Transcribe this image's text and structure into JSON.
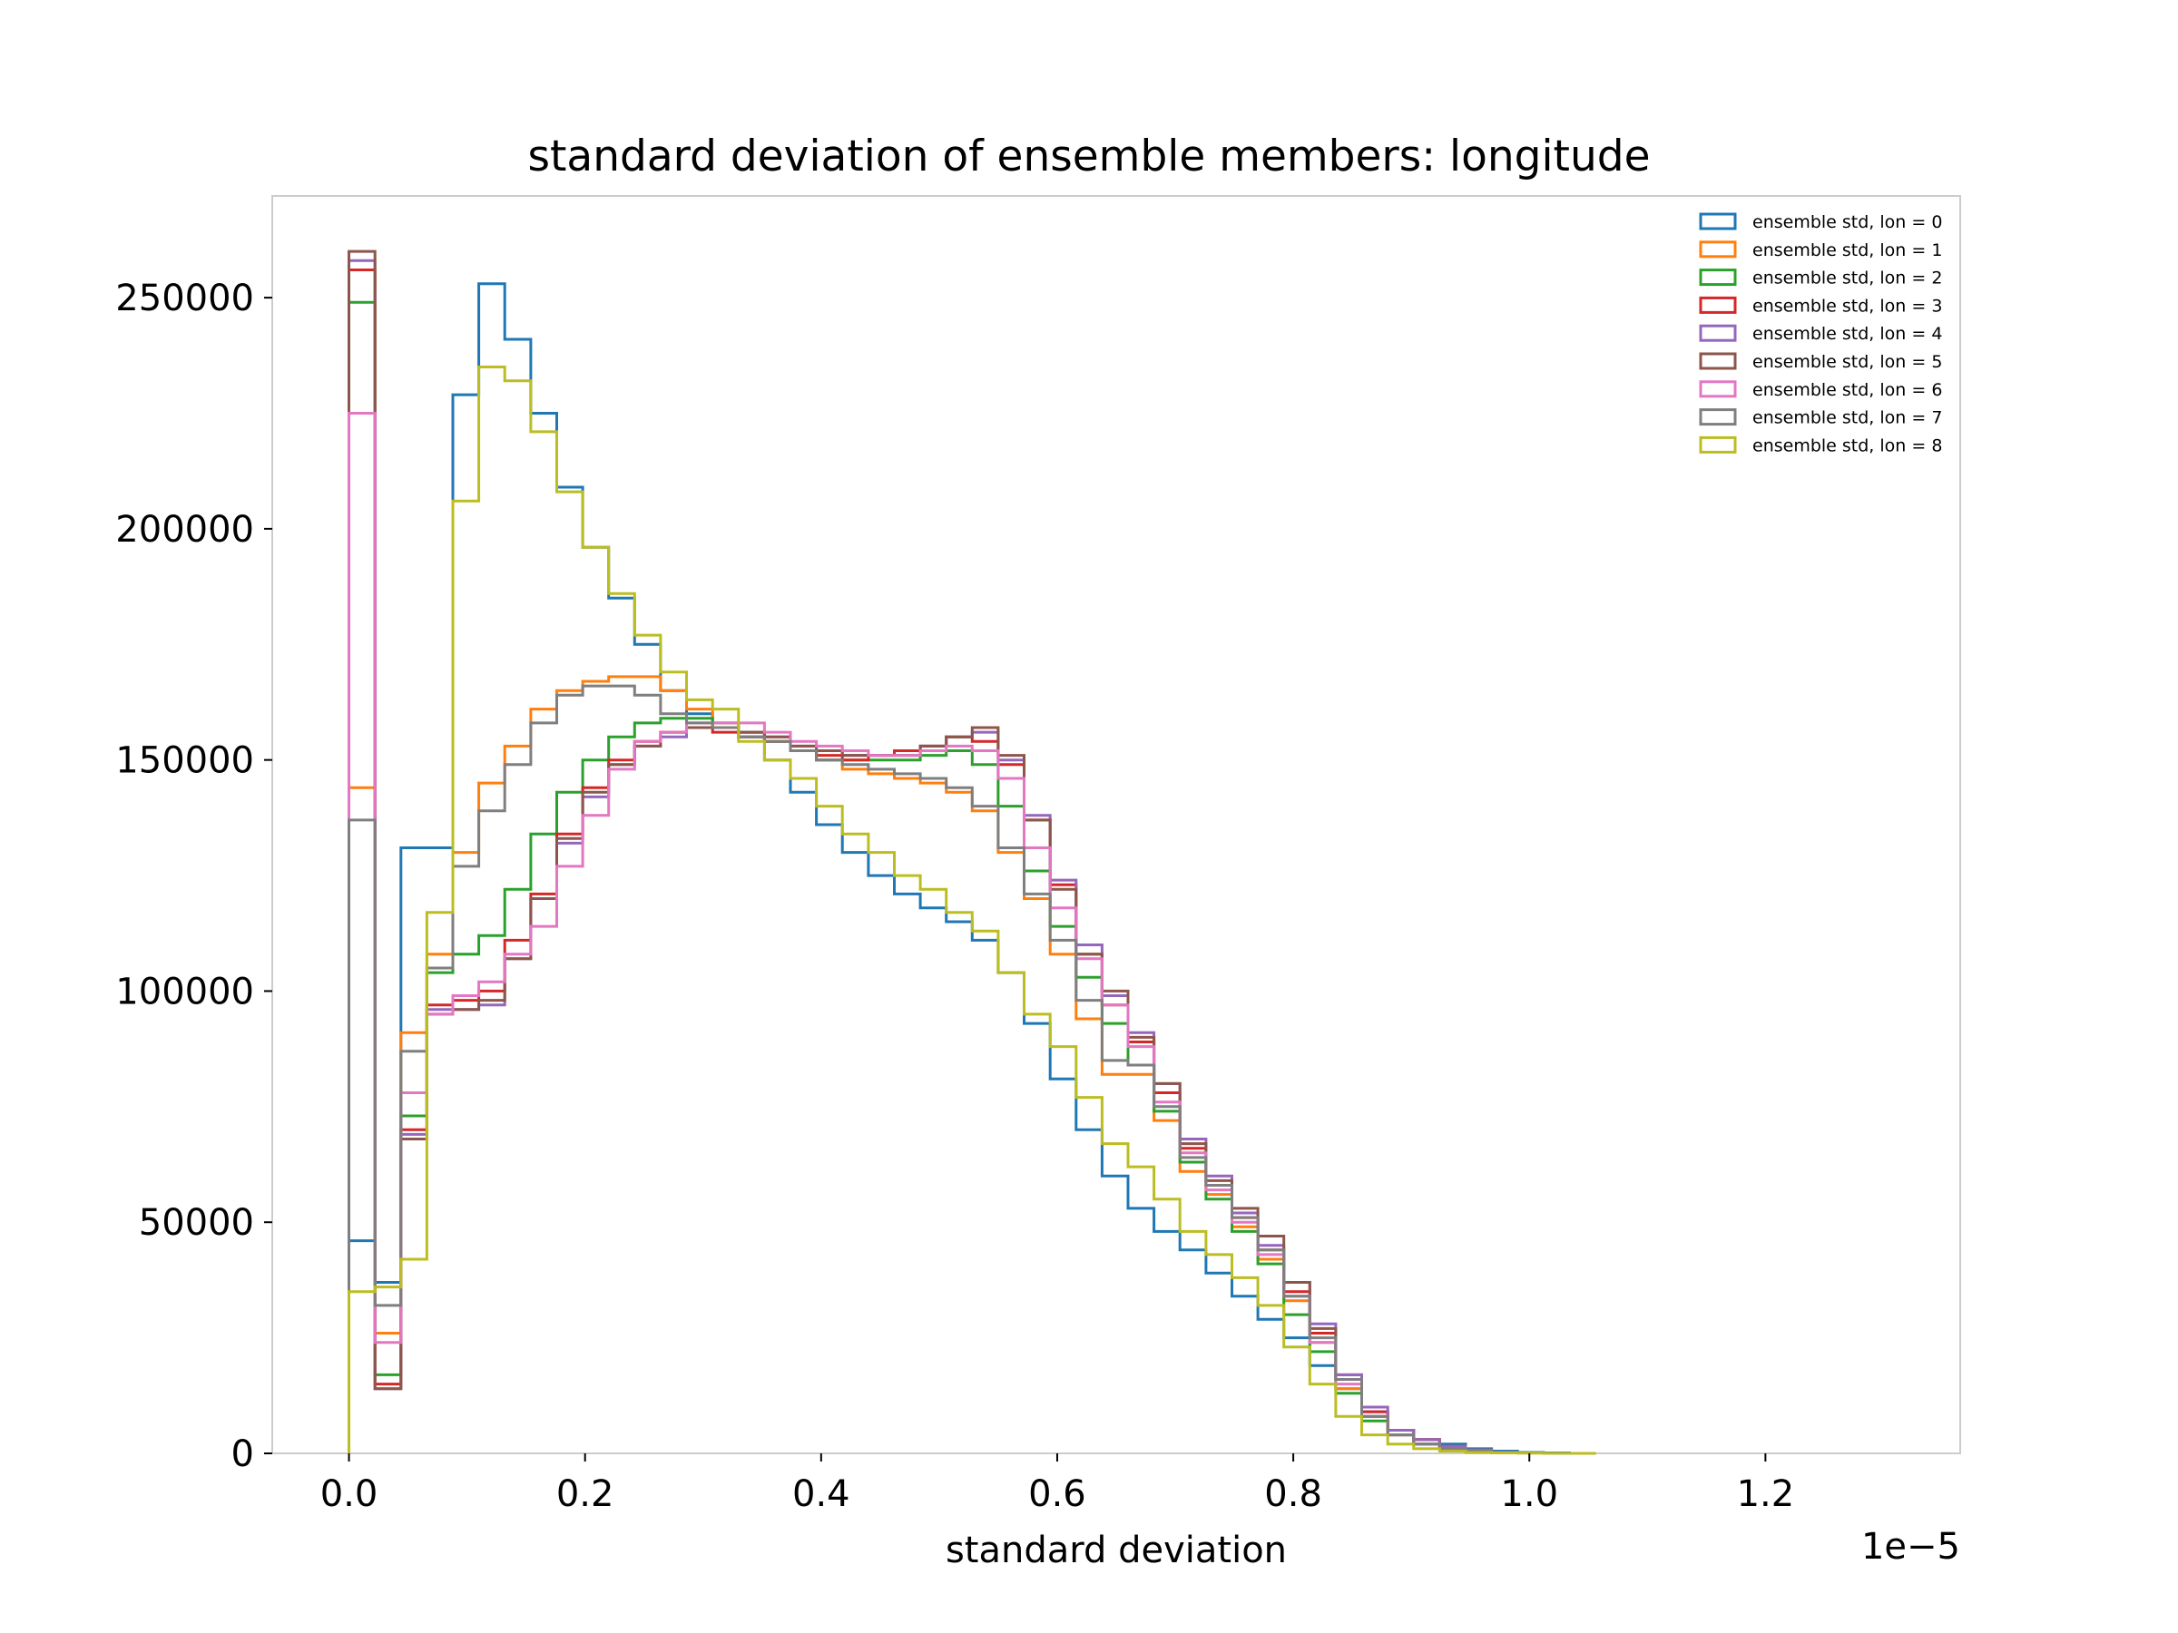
{
  "chart_data": {
    "type": "histogram-step",
    "title": "standard deviation of ensemble members: longitude",
    "xlabel": "standard deviation",
    "ylabel": "",
    "x_offset_text": "1e−5",
    "xlim": [
      -0.065,
      1.365
    ],
    "ylim": [
      0,
      272000
    ],
    "xticks": [
      0.0,
      0.2,
      0.4,
      0.6,
      0.8,
      1.0,
      1.2
    ],
    "xtick_labels": [
      "0.0",
      "0.2",
      "0.4",
      "0.6",
      "0.8",
      "1.0",
      "1.2"
    ],
    "yticks": [
      0,
      50000,
      100000,
      150000,
      200000,
      250000
    ],
    "ytick_labels": [
      "0",
      "50000",
      "100000",
      "150000",
      "200000",
      "250000"
    ],
    "grid": false,
    "legend_position": "upper right",
    "x_unit_scale": "1e-5",
    "bin_width": 0.022,
    "bins_start": 0.0,
    "series": [
      {
        "name": "ensemble std, lon = 0",
        "color": "#1f77b4",
        "values": [
          46000,
          37000,
          131000,
          131000,
          229000,
          253000,
          241000,
          225000,
          209000,
          196000,
          185000,
          175000,
          165000,
          160000,
          157000,
          155000,
          150000,
          143000,
          136000,
          130000,
          125000,
          121000,
          118000,
          115000,
          111000,
          104000,
          93000,
          81000,
          70000,
          60000,
          53000,
          48000,
          44000,
          39000,
          34000,
          29000,
          25000,
          19000,
          14000,
          9000,
          5000,
          3000,
          2000,
          1000,
          500,
          200,
          100,
          0
        ]
      },
      {
        "name": "ensemble std, lon = 1",
        "color": "#ff7f0e",
        "values": [
          144000,
          26000,
          91000,
          108000,
          130000,
          145000,
          153000,
          161000,
          165000,
          167000,
          168000,
          168000,
          165000,
          161000,
          158000,
          156000,
          154000,
          152000,
          150000,
          148000,
          147000,
          146000,
          145000,
          143000,
          139000,
          130000,
          120000,
          108000,
          94000,
          82000,
          82000,
          72000,
          61000,
          56000,
          49000,
          42000,
          33000,
          24000,
          14000,
          8000,
          5000,
          3000,
          1500,
          700,
          300,
          100,
          0,
          0
        ]
      },
      {
        "name": "ensemble std, lon = 2",
        "color": "#2ca02c",
        "values": [
          249000,
          17000,
          73000,
          104000,
          108000,
          112000,
          122000,
          134000,
          143000,
          150000,
          155000,
          158000,
          159000,
          159000,
          158000,
          156000,
          154000,
          152000,
          150000,
          150000,
          150000,
          150000,
          151000,
          152000,
          149000,
          140000,
          126000,
          114000,
          103000,
          93000,
          84000,
          74000,
          63000,
          55000,
          48000,
          41000,
          30000,
          22000,
          13000,
          7000,
          4000,
          2000,
          1000,
          500,
          200,
          100,
          0,
          0
        ]
      },
      {
        "name": "ensemble std, lon = 3",
        "color": "#d62728",
        "values": [
          256000,
          15000,
          70000,
          97000,
          98000,
          100000,
          111000,
          121000,
          134000,
          144000,
          150000,
          154000,
          156000,
          157000,
          156000,
          155000,
          154000,
          152000,
          151000,
          150000,
          151000,
          152000,
          153000,
          155000,
          154000,
          149000,
          137000,
          123000,
          108000,
          97000,
          89000,
          78000,
          66000,
          58000,
          51000,
          44000,
          35000,
          26000,
          17000,
          9000,
          5000,
          3000,
          1500,
          700,
          300,
          100,
          0,
          0
        ]
      },
      {
        "name": "ensemble std, lon = 4",
        "color": "#9467bd",
        "values": [
          258000,
          14000,
          69000,
          96000,
          96000,
          97000,
          107000,
          120000,
          132000,
          142000,
          149000,
          153000,
          155000,
          157000,
          157000,
          156000,
          155000,
          153000,
          152000,
          151000,
          151000,
          151000,
          153000,
          155000,
          156000,
          150000,
          138000,
          124000,
          110000,
          99000,
          91000,
          80000,
          68000,
          60000,
          52000,
          45000,
          37000,
          28000,
          17000,
          10000,
          5000,
          3000,
          1500,
          700,
          300,
          100,
          0,
          0
        ]
      },
      {
        "name": "ensemble std, lon = 5",
        "color": "#8c564b",
        "values": [
          260000,
          14000,
          68000,
          95000,
          96000,
          98000,
          107000,
          120000,
          133000,
          143000,
          149000,
          153000,
          156000,
          157000,
          157000,
          156000,
          155000,
          153000,
          152000,
          151000,
          151000,
          151000,
          153000,
          155000,
          157000,
          151000,
          137000,
          122000,
          108000,
          100000,
          90000,
          80000,
          67000,
          59000,
          53000,
          47000,
          37000,
          27000,
          16000,
          8000,
          4000,
          2000,
          1000,
          500,
          200,
          100,
          0,
          0
        ]
      },
      {
        "name": "ensemble std, lon = 6",
        "color": "#e377c2",
        "values": [
          225000,
          24000,
          78000,
          95000,
          99000,
          102000,
          108000,
          114000,
          127000,
          138000,
          148000,
          154000,
          156000,
          158000,
          158000,
          158000,
          156000,
          154000,
          153000,
          152000,
          151000,
          151000,
          152000,
          153000,
          152000,
          146000,
          131000,
          118000,
          107000,
          97000,
          88000,
          76000,
          65000,
          57000,
          50000,
          43000,
          34000,
          24000,
          15000,
          8000,
          4000,
          2000,
          1000,
          500,
          200,
          100,
          0,
          0
        ]
      },
      {
        "name": "ensemble std, lon = 7",
        "color": "#7f7f7f",
        "values": [
          137000,
          32000,
          87000,
          105000,
          127000,
          139000,
          149000,
          158000,
          164000,
          166000,
          166000,
          164000,
          160000,
          158000,
          157000,
          155000,
          154000,
          152000,
          150000,
          149000,
          148000,
          147000,
          146000,
          144000,
          140000,
          131000,
          121000,
          111000,
          98000,
          85000,
          84000,
          75000,
          64000,
          58000,
          51000,
          44000,
          34000,
          25000,
          16000,
          8000,
          4000,
          2000,
          1000,
          500,
          200,
          100,
          0,
          0
        ]
      },
      {
        "name": "ensemble std, lon = 8",
        "color": "#bcbd22",
        "values": [
          35000,
          36000,
          42000,
          117000,
          206000,
          235000,
          232000,
          221000,
          208000,
          196000,
          186000,
          177000,
          169000,
          163000,
          161000,
          154000,
          150000,
          146000,
          140000,
          134000,
          130000,
          125000,
          122000,
          117000,
          113000,
          104000,
          95000,
          88000,
          77000,
          67000,
          62000,
          55000,
          48000,
          43000,
          38000,
          32000,
          23000,
          15000,
          8000,
          4000,
          2000,
          1000,
          500,
          200,
          100,
          50,
          0,
          0
        ]
      }
    ]
  }
}
